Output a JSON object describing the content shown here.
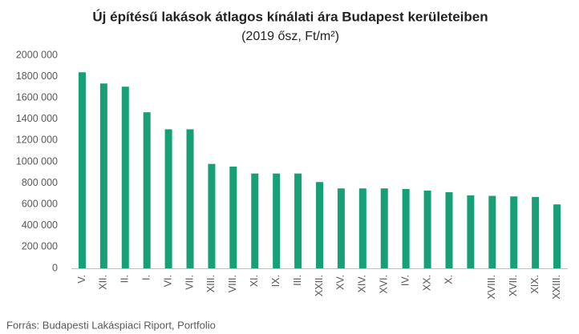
{
  "chart_data": {
    "type": "bar",
    "title": "Új építésű lakások átlagos kínálati ára Budapest kerületeiben",
    "subtitle": "(2019 ősz, Ft/m²)",
    "source": "Forrás: Budapesti Lakáspiaci Riport, Portfolio",
    "categories": [
      "V.",
      "XII.",
      "II.",
      "I.",
      "VI.",
      "VII.",
      "XIII.",
      "VIII.",
      "XI.",
      "IX.",
      "III.",
      "XXII.",
      "XV.",
      "XIV.",
      "XVI.",
      "IV.",
      "XX.",
      "X.",
      null,
      "XVIII.",
      "XVII.",
      "XIX.",
      "XXIII."
    ],
    "values": [
      1840000,
      1735000,
      1705000,
      1465000,
      1305000,
      1305000,
      980000,
      955000,
      890000,
      890000,
      890000,
      810000,
      750000,
      750000,
      750000,
      745000,
      730000,
      715000,
      685000,
      680000,
      675000,
      670000,
      600000
    ],
    "color": "#17a078",
    "ylim": [
      0,
      2000000
    ],
    "yticks": [
      0,
      {
        "value": 200000,
        "label": "200 000"
      },
      {
        "value": 400000,
        "label": "400 000"
      },
      {
        "value": 600000,
        "label": "600 000"
      },
      {
        "value": 800000,
        "label": "800 000"
      },
      {
        "value": 1000000,
        "label": "1000 000"
      },
      {
        "value": 1200000,
        "label": "1200 000"
      },
      {
        "value": 1400000,
        "label": "1400 000"
      },
      {
        "value": 1600000,
        "label": "1600 000"
      },
      {
        "value": 1800000,
        "label": "1800 000"
      },
      {
        "value": 2000000,
        "label": "2000 000"
      }
    ],
    "grid": false
  }
}
